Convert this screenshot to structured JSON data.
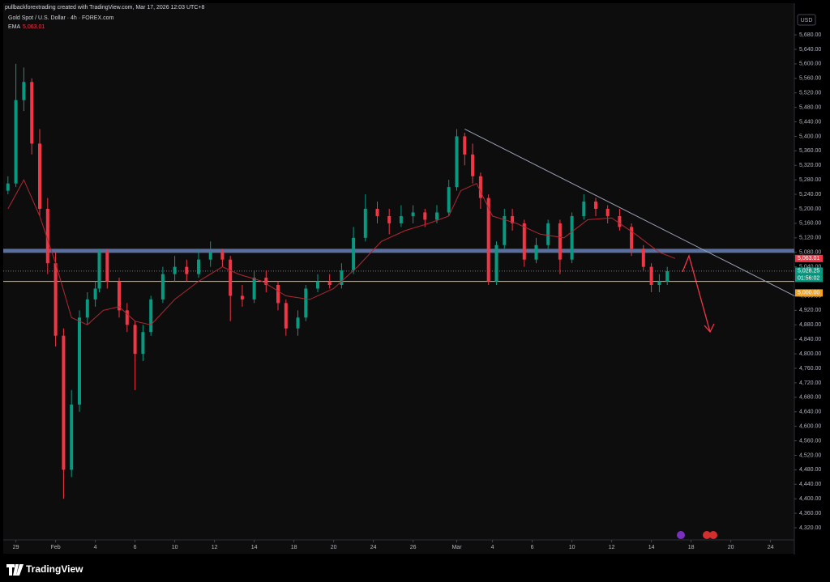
{
  "chart_data": {
    "type": "candlestick",
    "header": "pullbackforextrading created with TradingView.com, Mar 17, 2026 12:03 UTC+8",
    "title": "Gold Spot / U.S. Dollar · 4h · FOREX.com",
    "indicator": {
      "name": "EMA",
      "value_label": "5,063.01",
      "color": "#b22833",
      "x": [
        2,
        6,
        10,
        14,
        18,
        22,
        26,
        30,
        34,
        38,
        44,
        50,
        56,
        60,
        66,
        72,
        78,
        84,
        90,
        96,
        102,
        108,
        113,
        116,
        120,
        124,
        130,
        136,
        142,
        148,
        154,
        160,
        166,
        170
      ],
      "values": [
        5200,
        5280,
        5180,
        5050,
        4900,
        4880,
        4920,
        4930,
        4890,
        4880,
        4950,
        5000,
        5040,
        5020,
        5000,
        4960,
        4950,
        4980,
        5040,
        5110,
        5140,
        5160,
        5180,
        5250,
        5270,
        5180,
        5160,
        5130,
        5120,
        5170,
        5175,
        5130,
        5080,
        5063
      ]
    },
    "currency": "USD",
    "brand": "TradingView",
    "up_color": "#089981",
    "down_color": "#f23645",
    "candles": {
      "x": [
        2,
        4,
        6,
        8,
        10,
        12,
        14,
        16,
        18,
        20,
        22,
        24,
        25,
        27,
        30,
        32,
        34,
        36,
        38,
        41,
        44,
        47,
        50,
        53,
        56,
        58,
        61,
        64,
        67,
        70,
        72,
        75,
        77,
        80,
        83,
        86,
        89,
        92,
        95,
        98,
        101,
        104,
        107,
        110,
        113,
        115,
        117,
        119,
        121,
        123,
        125,
        127,
        129,
        132,
        135,
        138,
        141,
        144,
        147,
        150,
        153,
        156,
        159,
        162,
        164,
        166,
        168
      ],
      "open": [
        5250,
        5270,
        5500,
        5550,
        5380,
        5200,
        5050,
        4850,
        4480,
        4660,
        4900,
        4950,
        4980,
        5080,
        5000,
        4920,
        4880,
        4800,
        4860,
        4950,
        5020,
        5040,
        5020,
        5060,
        5080,
        5060,
        4960,
        4950,
        5010,
        4990,
        4940,
        4870,
        4900,
        4980,
        5000,
        4990,
        5030,
        5120,
        5200,
        5180,
        5160,
        5180,
        5190,
        5170,
        5190,
        5260,
        5400,
        5350,
        5290,
        5230,
        5000,
        5100,
        5180,
        5160,
        5060,
        5100,
        5160,
        5060,
        5180,
        5220,
        5200,
        5180,
        5150,
        5090,
        5040,
        4990,
        5000
      ],
      "high": [
        5290,
        5600,
        5590,
        5560,
        5420,
        5230,
        5080,
        4870,
        4700,
        4920,
        4970,
        5000,
        5090,
        5090,
        5010,
        4940,
        4890,
        4880,
        4960,
        5040,
        5070,
        5060,
        5090,
        5110,
        5090,
        5070,
        4990,
        5030,
        5030,
        5000,
        4950,
        4920,
        4990,
        5020,
        5020,
        5050,
        5150,
        5240,
        5220,
        5200,
        5210,
        5210,
        5200,
        5210,
        5280,
        5420,
        5410,
        5380,
        5300,
        5240,
        5110,
        5200,
        5200,
        5170,
        5120,
        5170,
        5170,
        5190,
        5240,
        5230,
        5210,
        5200,
        5160,
        5100,
        5050,
        5020,
        5040
      ],
      "low": [
        5240,
        5260,
        5470,
        5350,
        5180,
        5020,
        4820,
        4400,
        4460,
        4640,
        4880,
        4930,
        4970,
        4980,
        4900,
        4860,
        4700,
        4780,
        4850,
        4940,
        5000,
        5000,
        5010,
        5040,
        5040,
        4890,
        4930,
        4940,
        4970,
        4920,
        4850,
        4850,
        4890,
        4970,
        4980,
        4980,
        5020,
        5110,
        5160,
        5130,
        5150,
        5160,
        5150,
        5160,
        5180,
        5250,
        5320,
        5270,
        5200,
        4990,
        4990,
        5090,
        5140,
        5040,
        5050,
        5090,
        5020,
        5050,
        5170,
        5180,
        5160,
        5140,
        5070,
        5030,
        4970,
        4970,
        4990
      ],
      "close": [
        5270,
        5500,
        5550,
        5380,
        5200,
        5050,
        4850,
        4480,
        4660,
        4900,
        4950,
        4980,
        5080,
        5000,
        4920,
        4880,
        4800,
        4860,
        4950,
        5020,
        5040,
        5020,
        5060,
        5080,
        5060,
        4960,
        4950,
        5010,
        4990,
        4940,
        4870,
        4900,
        4980,
        5000,
        4990,
        5030,
        5120,
        5200,
        5180,
        5160,
        5180,
        5190,
        5170,
        5190,
        5260,
        5400,
        5350,
        5290,
        5230,
        5000,
        5100,
        5180,
        5160,
        5060,
        5100,
        5160,
        5060,
        5180,
        5220,
        5200,
        5180,
        5150,
        5090,
        5040,
        4990,
        5000,
        5028
      ]
    },
    "levels": [
      {
        "value": 5084,
        "color": "#5b6f9e",
        "thick": true
      },
      {
        "value": 5000,
        "color": "#f7a21b",
        "thick": false
      }
    ],
    "current_price": 5028.25,
    "trendline": {
      "x": [
        117,
        200
      ],
      "y": [
        5420,
        4960
      ],
      "color": "#9ba3b8"
    },
    "price_tags": [
      {
        "value": 5063.01,
        "label": "5,063.01",
        "color": "#f23645"
      },
      {
        "value": 5028.25,
        "label": "5,028.25",
        "color": "#089981"
      },
      {
        "value": 5000,
        "label": "5,000.00",
        "color": "#f7a21b"
      }
    ],
    "countdown": "01:56:02",
    "xlim": [
      0,
      200
    ],
    "xticks": [
      {
        "value": 4,
        "label": "29"
      },
      {
        "value": 14,
        "label": "Feb"
      },
      {
        "value": 24,
        "label": "4"
      },
      {
        "value": 34,
        "label": "6"
      },
      {
        "value": 44,
        "label": "10"
      },
      {
        "value": 54,
        "label": "12"
      },
      {
        "value": 64,
        "label": "14"
      },
      {
        "value": 74,
        "label": "18"
      },
      {
        "value": 84,
        "label": "20"
      },
      {
        "value": 94,
        "label": "24"
      },
      {
        "value": 104,
        "label": "26"
      },
      {
        "value": 115,
        "label": "Mar"
      },
      {
        "value": 124,
        "label": "4"
      },
      {
        "value": 134,
        "label": "6"
      },
      {
        "value": 144,
        "label": "10"
      },
      {
        "value": 154,
        "label": "12"
      },
      {
        "value": 164,
        "label": "14"
      },
      {
        "value": 174,
        "label": "18"
      },
      {
        "value": 184,
        "label": "20"
      },
      {
        "value": 194,
        "label": "24"
      }
    ],
    "ylim": [
      4291,
      5736
    ],
    "yticks": [
      {
        "value": 5680,
        "label": "5,680.00"
      },
      {
        "value": 5640,
        "label": "5,640.00"
      },
      {
        "value": 5600,
        "label": "5,600.00"
      },
      {
        "value": 5560,
        "label": "5,560.00"
      },
      {
        "value": 5520,
        "label": "5,520.00"
      },
      {
        "value": 5480,
        "label": "5,480.00"
      },
      {
        "value": 5440,
        "label": "5,440.00"
      },
      {
        "value": 5400,
        "label": "5,400.00"
      },
      {
        "value": 5360,
        "label": "5,360.00"
      },
      {
        "value": 5320,
        "label": "5,320.00"
      },
      {
        "value": 5280,
        "label": "5,280.00"
      },
      {
        "value": 5240,
        "label": "5,240.00"
      },
      {
        "value": 5200,
        "label": "5,200.00"
      },
      {
        "value": 5160,
        "label": "5,160.00"
      },
      {
        "value": 5120,
        "label": "5,120.00"
      },
      {
        "value": 5080,
        "label": "5,080.00"
      },
      {
        "value": 5040,
        "label": "5,040.00"
      },
      {
        "value": 4960,
        "label": "4,960.00"
      },
      {
        "value": 4920,
        "label": "4,920.00"
      },
      {
        "value": 4880,
        "label": "4,880.00"
      },
      {
        "value": 4840,
        "label": "4,840.00"
      },
      {
        "value": 4800,
        "label": "4,800.00"
      },
      {
        "value": 4760,
        "label": "4,760.00"
      },
      {
        "value": 4720,
        "label": "4,720.00"
      },
      {
        "value": 4680,
        "label": "4,680.00"
      },
      {
        "value": 4640,
        "label": "4,640.00"
      },
      {
        "value": 4600,
        "label": "4,600.00"
      },
      {
        "value": 4560,
        "label": "4,560.00"
      },
      {
        "value": 4520,
        "label": "4,520.00"
      },
      {
        "value": 4480,
        "label": "4,480.00"
      },
      {
        "value": 4440,
        "label": "4,440.00"
      },
      {
        "value": 4400,
        "label": "4,400.00"
      },
      {
        "value": 4360,
        "label": "4,360.00"
      },
      {
        "value": 4320,
        "label": "4,320.00"
      }
    ]
  }
}
